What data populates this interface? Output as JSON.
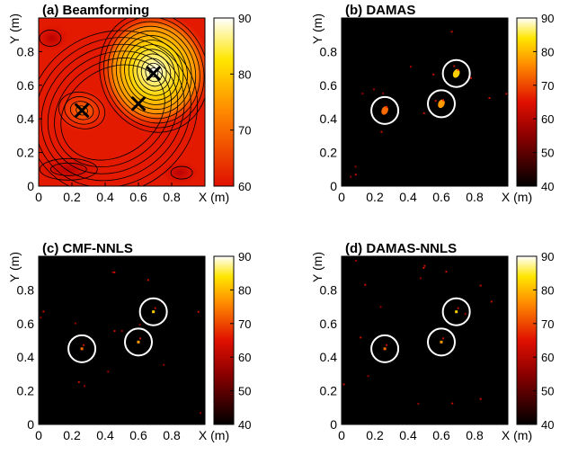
{
  "chart_data": [
    {
      "type": "heatmap",
      "title": "(a) Beamforming",
      "xlabel": "X (m)",
      "ylabel": "Y (m)",
      "xlim": [
        0,
        1
      ],
      "ylim": [
        0,
        1
      ],
      "x_ticks": [
        "0",
        "0.2",
        "0.4",
        "0.6",
        "0.8"
      ],
      "y_ticks": [
        "0",
        "0.2",
        "0.4",
        "0.6",
        "0.8"
      ],
      "colorbar": {
        "min": 60,
        "max": 90,
        "ticks": [
          "60",
          "70",
          "80",
          "90"
        ]
      },
      "contours": true,
      "sources": [
        {
          "x": 0.26,
          "y": 0.45,
          "marker": "x"
        },
        {
          "x": 0.6,
          "y": 0.49,
          "marker": "x"
        },
        {
          "x": 0.69,
          "y": 0.67,
          "marker": "x"
        }
      ]
    },
    {
      "type": "heatmap",
      "title": "(b) DAMAS",
      "xlabel": "X (m)",
      "ylabel": "Y (m)",
      "xlim": [
        0,
        1
      ],
      "ylim": [
        0,
        1
      ],
      "x_ticks": [
        "0",
        "0.2",
        "0.4",
        "0.6",
        "0.8"
      ],
      "y_ticks": [
        "0",
        "0.2",
        "0.4",
        "0.6",
        "0.8"
      ],
      "colorbar": {
        "min": 40,
        "max": 90,
        "ticks": [
          "40",
          "50",
          "60",
          "70",
          "80",
          "90"
        ]
      },
      "sources": [
        {
          "x": 0.26,
          "y": 0.45,
          "marker": "circle"
        },
        {
          "x": 0.6,
          "y": 0.49,
          "marker": "circle"
        },
        {
          "x": 0.69,
          "y": 0.67,
          "marker": "circle"
        }
      ]
    },
    {
      "type": "heatmap",
      "title": "(c) CMF-NNLS",
      "xlabel": "X (m)",
      "ylabel": "Y (m)",
      "xlim": [
        0,
        1
      ],
      "ylim": [
        0,
        1
      ],
      "x_ticks": [
        "0",
        "0.2",
        "0.4",
        "0.6",
        "0.8"
      ],
      "y_ticks": [
        "0",
        "0.2",
        "0.4",
        "0.6",
        "0.8"
      ],
      "colorbar": {
        "min": 40,
        "max": 90,
        "ticks": [
          "40",
          "50",
          "60",
          "70",
          "80",
          "90"
        ]
      },
      "sources": [
        {
          "x": 0.26,
          "y": 0.45,
          "marker": "circle"
        },
        {
          "x": 0.6,
          "y": 0.49,
          "marker": "circle"
        },
        {
          "x": 0.69,
          "y": 0.67,
          "marker": "circle"
        }
      ]
    },
    {
      "type": "heatmap",
      "title": "(d) DAMAS-NNLS",
      "xlabel": "X (m)",
      "ylabel": "Y (m)",
      "xlim": [
        0,
        1
      ],
      "ylim": [
        0,
        1
      ],
      "x_ticks": [
        "0",
        "0.2",
        "0.4",
        "0.6",
        "0.8"
      ],
      "y_ticks": [
        "0",
        "0.2",
        "0.4",
        "0.6",
        "0.8"
      ],
      "colorbar": {
        "min": 40,
        "max": 90,
        "ticks": [
          "40",
          "50",
          "60",
          "70",
          "80",
          "90"
        ]
      },
      "sources": [
        {
          "x": 0.26,
          "y": 0.45,
          "marker": "circle"
        },
        {
          "x": 0.6,
          "y": 0.49,
          "marker": "circle"
        },
        {
          "x": 0.69,
          "y": 0.67,
          "marker": "circle"
        }
      ]
    }
  ]
}
